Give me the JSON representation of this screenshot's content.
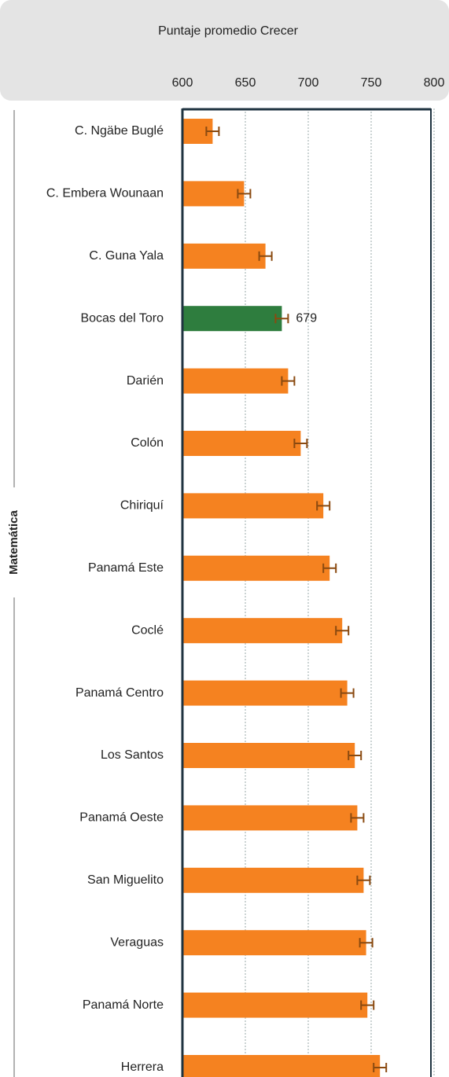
{
  "chart_data": {
    "type": "bar",
    "orientation": "horizontal",
    "xlabel": "Puntaje promedio Crecer",
    "group_label": "Matemática",
    "categories": [
      "C. Ngäbe Buglé",
      "C. Embera Wounaan",
      "C. Guna Yala",
      "Bocas del Toro",
      "Darién",
      "Colón",
      "Chiriquí",
      "Panamá Este",
      "Coclé",
      "Panamá Centro",
      "Los Santos",
      "Panamá Oeste",
      "San Miguelito",
      "Veraguas",
      "Panamá Norte",
      "Herrera"
    ],
    "values": [
      624,
      649,
      666,
      679,
      684,
      694,
      712,
      717,
      727,
      731,
      737,
      739,
      744,
      746,
      747,
      757
    ],
    "errors": [
      5,
      5,
      5,
      5,
      5,
      5,
      5,
      5,
      5,
      5,
      5,
      5,
      5,
      5,
      5,
      5
    ],
    "value_labels": [
      null,
      null,
      null,
      "679",
      null,
      null,
      null,
      null,
      null,
      null,
      null,
      null,
      null,
      null,
      null,
      null
    ],
    "colors": [
      "#f58220",
      "#f58220",
      "#f58220",
      "#2e7d3e",
      "#f58220",
      "#f58220",
      "#f58220",
      "#f58220",
      "#f58220",
      "#f58220",
      "#f58220",
      "#f58220",
      "#f58220",
      "#f58220",
      "#f58220",
      "#f58220"
    ],
    "error_color": "#8a4a10",
    "xlim": [
      600,
      800
    ],
    "xticks": [
      600,
      650,
      700,
      750,
      800
    ],
    "grid": true
  }
}
